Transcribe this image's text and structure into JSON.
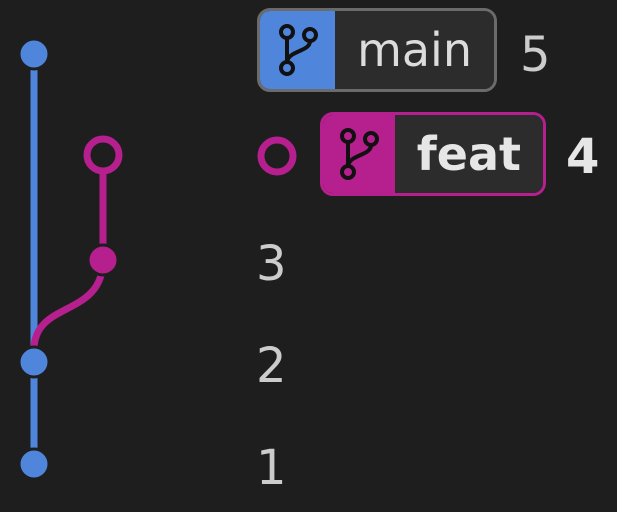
{
  "graph": {
    "colors": {
      "main": "#4f86dc",
      "feat": "#b51f8e",
      "background": "#1e1e1e"
    }
  },
  "commits": [
    {
      "label": "5",
      "branch": "main",
      "head": true,
      "current": false
    },
    {
      "label": "4",
      "branch": "feat",
      "head": true,
      "current": true
    },
    {
      "label": "3",
      "branch": "feat",
      "head": false,
      "current": false
    },
    {
      "label": "2",
      "branch": "main",
      "head": false,
      "current": false
    },
    {
      "label": "1",
      "branch": "main",
      "head": false,
      "current": false
    }
  ],
  "branches": {
    "main": {
      "name": "main",
      "icon": "git-branch-icon",
      "color": "#4f86dc",
      "border": "#6b6b6b"
    },
    "feat": {
      "name": "feat",
      "icon": "git-branch-icon",
      "color": "#b51f8e",
      "border": "#b51f8e"
    }
  }
}
